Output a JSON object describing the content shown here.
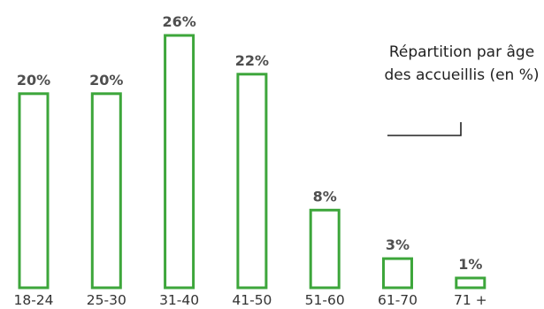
{
  "chart_data": {
    "type": "bar",
    "title_lines": [
      "Répartition par âge",
      "des accueillis (en %)"
    ],
    "categories": [
      "18-24",
      "25-30",
      "31-40",
      "41-50",
      "51-60",
      "61-70",
      "71 +"
    ],
    "values": [
      20,
      20,
      26,
      22,
      8,
      3,
      1
    ],
    "value_labels": [
      "20%",
      "20%",
      "26%",
      "22%",
      "8%",
      "3%",
      "1%"
    ],
    "unit": "%",
    "ylim": [
      0,
      26
    ],
    "grid": false,
    "legend": "none",
    "bar_color": "#3da63b"
  }
}
